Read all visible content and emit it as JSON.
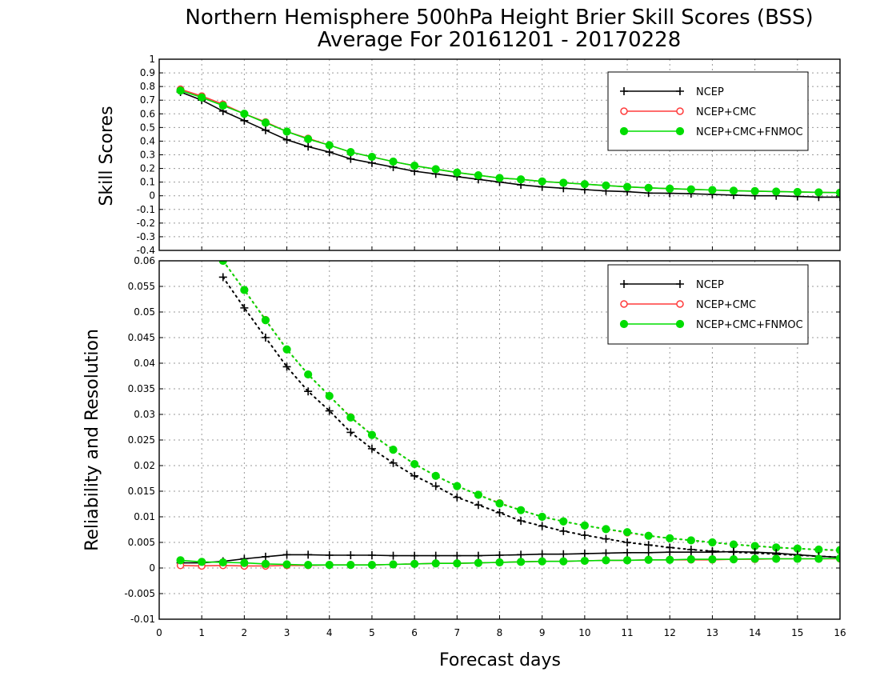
{
  "figure": {
    "title_line1": "Northern Hemisphere 500hPa Height Brier Skill Scores (BSS)",
    "title_line2": "Average For 20161201 - 20170228",
    "xlabel": "Forecast days"
  },
  "colors": {
    "ncep": "#000000",
    "ncep_cmc": "#ff3b3b",
    "ncep_cmc_fnmoc": "#00dd00",
    "grid": "#9a9a9a"
  },
  "chart_data": [
    {
      "type": "line",
      "ylabel": "Skill Scores",
      "xlim": [
        0,
        16
      ],
      "ylim": [
        -0.4,
        1
      ],
      "xticks": [
        "0",
        "1",
        "2",
        "3",
        "4",
        "5",
        "6",
        "7",
        "8",
        "9",
        "10",
        "11",
        "12",
        "13",
        "14",
        "15",
        "16"
      ],
      "yticks": [
        "1",
        "0.9",
        "0.8",
        "0.7",
        "0.6",
        "0.5",
        "0.4",
        "0.3",
        "0.2",
        "0.1",
        "0",
        "-0.1",
        "-0.2",
        "-0.3",
        "-0.4"
      ],
      "grid": true,
      "legend_position": "top-right",
      "x": [
        0.5,
        1,
        1.5,
        2,
        2.5,
        3,
        3.5,
        4,
        4.5,
        5,
        5.5,
        6,
        6.5,
        7,
        7.5,
        8,
        8.5,
        9,
        9.5,
        10,
        10.5,
        11,
        11.5,
        12,
        12.5,
        13,
        13.5,
        14,
        14.5,
        15,
        15.5,
        16
      ],
      "series": [
        {
          "name": "NCEP",
          "marker": "plus",
          "values": [
            0.76,
            0.7,
            0.62,
            0.55,
            0.48,
            0.41,
            0.36,
            0.32,
            0.27,
            0.24,
            0.21,
            0.18,
            0.16,
            0.14,
            0.12,
            0.1,
            0.08,
            0.065,
            0.055,
            0.045,
            0.035,
            0.03,
            0.02,
            0.018,
            0.015,
            0.01,
            0.005,
            0,
            0,
            -0.005,
            -0.01,
            -0.01
          ]
        },
        {
          "name": "NCEP+CMC",
          "marker": "open-circle",
          "values": [
            0.78,
            0.73,
            0.67,
            0.6,
            0.54,
            0.47,
            0.42,
            0.37,
            0.32,
            0.285,
            0.25,
            0.22,
            0.195,
            0.17,
            0.15,
            0.13,
            0.12,
            0.105,
            0.095,
            0.085,
            0.075,
            0.065,
            0.058,
            0.052,
            0.047,
            0.042,
            0.037,
            0.034,
            0.031,
            0.028,
            0.025,
            0.023
          ]
        },
        {
          "name": "NCEP+CMC+FNMOC",
          "marker": "filled-circle",
          "values": [
            0.77,
            0.72,
            0.66,
            0.6,
            0.535,
            0.47,
            0.415,
            0.37,
            0.32,
            0.285,
            0.25,
            0.22,
            0.195,
            0.17,
            0.15,
            0.13,
            0.12,
            0.105,
            0.095,
            0.085,
            0.075,
            0.065,
            0.058,
            0.052,
            0.047,
            0.042,
            0.037,
            0.034,
            0.031,
            0.028,
            0.025,
            0.023
          ]
        }
      ]
    },
    {
      "type": "line",
      "ylabel": "Reliability and Resolution",
      "xlim": [
        0,
        16
      ],
      "ylim": [
        -0.01,
        0.06
      ],
      "xticks": [
        "0",
        "1",
        "2",
        "3",
        "4",
        "5",
        "6",
        "7",
        "8",
        "9",
        "10",
        "11",
        "12",
        "13",
        "14",
        "15",
        "16"
      ],
      "yticks": [
        "0.06",
        "0.055",
        "0.05",
        "0.045",
        "0.04",
        "0.035",
        "0.03",
        "0.025",
        "0.02",
        "0.015",
        "0.01",
        "0.005",
        "0",
        "-0.005",
        "-0.01"
      ],
      "grid": true,
      "legend_position": "top-right",
      "x": [
        0.5,
        1,
        1.5,
        2,
        2.5,
        3,
        3.5,
        4,
        4.5,
        5,
        5.5,
        6,
        6.5,
        7,
        7.5,
        8,
        8.5,
        9,
        9.5,
        10,
        10.5,
        11,
        11.5,
        12,
        12.5,
        13,
        13.5,
        14,
        14.5,
        15,
        15.5,
        16
      ],
      "series": [
        {
          "name": "NCEP",
          "style": "dotted",
          "marker": "plus",
          "values": [
            null,
            null,
            0.0568,
            0.0508,
            0.045,
            0.0393,
            0.0345,
            0.0307,
            0.0265,
            0.0233,
            0.0205,
            0.018,
            0.016,
            0.0138,
            0.0123,
            0.0108,
            0.0092,
            0.0082,
            0.0072,
            0.0064,
            0.0057,
            0.005,
            0.0045,
            0.004,
            0.0036,
            0.0033,
            0.0031,
            0.0029,
            0.0027,
            0.0025,
            0.0023,
            0.0021
          ]
        },
        {
          "name": "NCEP+CMC",
          "style": "dotted",
          "marker": "open-circle",
          "values": [
            null,
            null,
            0.06,
            0.0543,
            0.0485,
            0.0427,
            0.0378,
            0.0336,
            0.0295,
            0.026,
            0.0231,
            0.0203,
            0.018,
            0.016,
            0.0143,
            0.0127,
            0.0113,
            0.01,
            0.0091,
            0.0083,
            0.0076,
            0.0069,
            0.0063,
            0.0058,
            0.0054,
            0.005,
            0.0046,
            0.0043,
            0.004,
            0.0038,
            0.0036,
            0.0034
          ]
        },
        {
          "name": "NCEP+CMC+FNMOC",
          "style": "dotted",
          "marker": "filled-circle",
          "values": [
            null,
            null,
            0.06,
            0.0543,
            0.0484,
            0.0427,
            0.0378,
            0.0336,
            0.0294,
            0.026,
            0.0231,
            0.0203,
            0.018,
            0.016,
            0.0143,
            0.0126,
            0.0113,
            0.01,
            0.0091,
            0.0083,
            0.0076,
            0.007,
            0.0063,
            0.0058,
            0.0054,
            0.005,
            0.0046,
            0.0043,
            0.004,
            0.0038,
            0.0036,
            0.0035
          ]
        },
        {
          "name": "NCEP",
          "style": "solid",
          "marker": "plus",
          "values": [
            0.001,
            0.001,
            0.0013,
            0.0018,
            0.0022,
            0.0026,
            0.0026,
            0.0025,
            0.0025,
            0.0025,
            0.0024,
            0.0024,
            0.0024,
            0.0024,
            0.0024,
            0.0025,
            0.0026,
            0.0027,
            0.0027,
            0.0028,
            0.0029,
            0.003,
            0.003,
            0.0031,
            0.0031,
            0.0031,
            0.0032,
            0.0031,
            0.0029,
            0.0026,
            0.0023,
            0.0021
          ]
        },
        {
          "name": "NCEP+CMC",
          "style": "solid",
          "marker": "open-circle",
          "values": [
            0.0005,
            0.0004,
            0.0005,
            0.0004,
            0.0004,
            0.0005,
            0.0005,
            0.0006,
            0.0006,
            0.0006,
            0.0007,
            0.0008,
            0.0009,
            0.0009,
            0.001,
            0.0011,
            0.0012,
            0.0013,
            0.0013,
            0.0014,
            0.0015,
            0.0015,
            0.0016,
            0.0016,
            0.0016,
            0.0016,
            0.0017,
            0.0017,
            0.0018,
            0.0018,
            0.0018,
            0.0018
          ]
        },
        {
          "name": "NCEP+CMC+FNMOC",
          "style": "solid",
          "marker": "filled-circle",
          "values": [
            0.0015,
            0.0012,
            0.0011,
            0.001,
            0.0008,
            0.0007,
            0.0006,
            0.0006,
            0.0006,
            0.0006,
            0.0007,
            0.0008,
            0.0009,
            0.0009,
            0.001,
            0.0011,
            0.0012,
            0.0013,
            0.0013,
            0.0014,
            0.0015,
            0.0015,
            0.0016,
            0.0016,
            0.0017,
            0.0017,
            0.0017,
            0.0018,
            0.0018,
            0.0018,
            0.0018,
            0.0019
          ]
        }
      ]
    }
  ]
}
